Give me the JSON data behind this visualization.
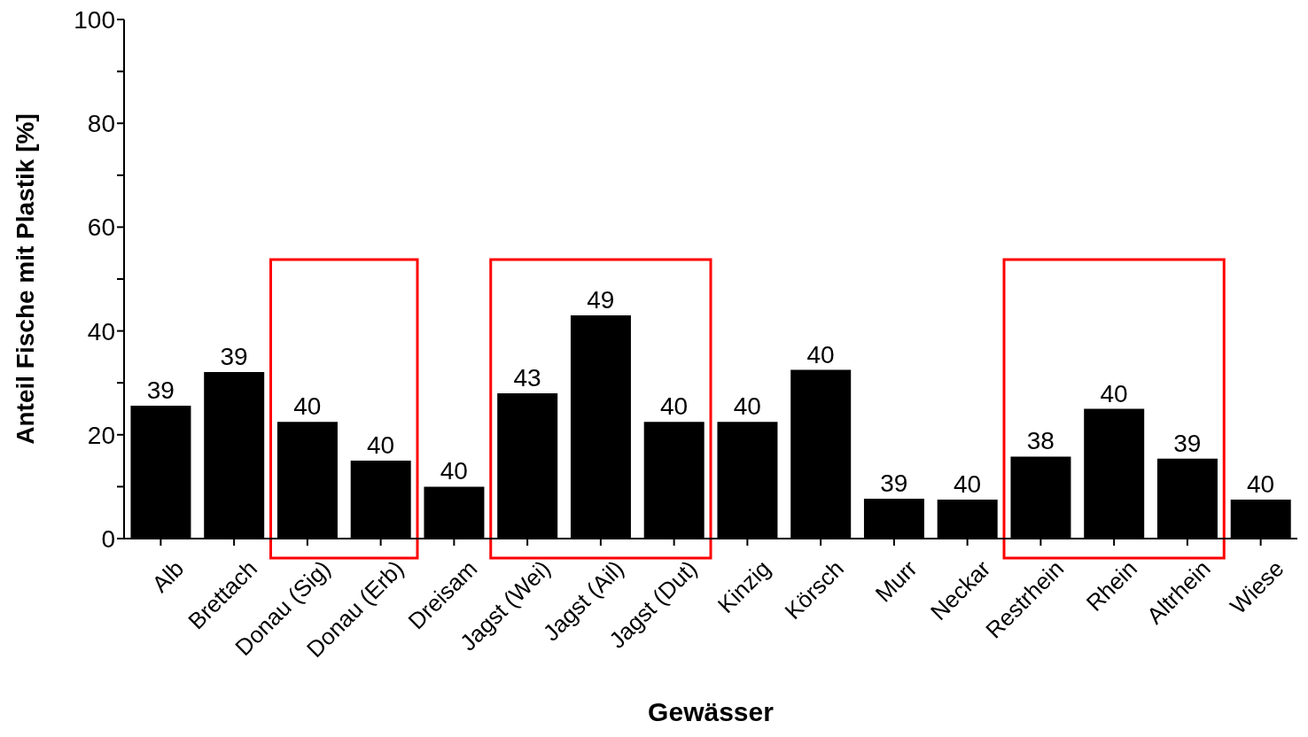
{
  "chart_data": {
    "type": "bar",
    "xlabel": "Gewässer",
    "ylabel": "Anteil Fische mit Plastik [%]",
    "categories": [
      "Alb",
      "Brettach",
      "Donau (Sig)",
      "Donau (Erb)",
      "Dreisam",
      "Jagst (Wei)",
      "Jagst (Ail)",
      "Jagst (Dut)",
      "Kinzig",
      "Körsch",
      "Murr",
      "Neckar",
      "Restrhein",
      "Rhein",
      "Altrhein",
      "Wiese"
    ],
    "values": [
      25.6,
      32.1,
      22.5,
      15,
      10,
      28,
      43,
      22.5,
      22.5,
      32.5,
      7.7,
      7.5,
      15.8,
      25,
      15.4,
      7.5
    ],
    "annotations": [
      {
        "text": "39",
        "x": "Alb",
        "y": 25.6
      },
      {
        "text": "39",
        "x": "Brettach",
        "y": 32.1
      },
      {
        "text": "40",
        "x": "Donau (Sig)",
        "y": 22.5
      },
      {
        "text": "40",
        "x": "Donau (Erb)",
        "y": 15
      },
      {
        "text": "40",
        "x": "Dreisam",
        "y": 10
      },
      {
        "text": "43",
        "x": "Jagst (Wei)",
        "y": 28
      },
      {
        "text": "49",
        "x": "Jagst (Ail)",
        "y": 43
      },
      {
        "text": "40",
        "x": "Jagst (Dut)",
        "y": 22.5
      },
      {
        "text": "40",
        "x": "Kinzig",
        "y": 22.5
      },
      {
        "text": "40",
        "x": "Körsch",
        "y": 32.5
      },
      {
        "text": "39",
        "x": "Murr",
        "y": 7.7
      },
      {
        "text": "40",
        "x": "Neckar",
        "y": 7.5
      },
      {
        "text": "38",
        "x": "Restrhein",
        "y": 15.8
      },
      {
        "text": "40",
        "x": "Rhein",
        "y": 25
      },
      {
        "text": "39",
        "x": "Altrhein",
        "y": 15.4
      },
      {
        "text": "40",
        "x": "Wiese",
        "y": 7.5
      }
    ],
    "color": "#000000",
    "ylim": [
      0,
      100
    ],
    "yticks": [
      0,
      {
        "value": 10,
        "label": null
      },
      20,
      {
        "value": 30,
        "label": null
      },
      40,
      {
        "value": 50,
        "label": null
      },
      60,
      {
        "value": 70,
        "label": null
      },
      80,
      {
        "value": 90,
        "label": null
      },
      100
    ],
    "grid": false,
    "legend": false
  }
}
